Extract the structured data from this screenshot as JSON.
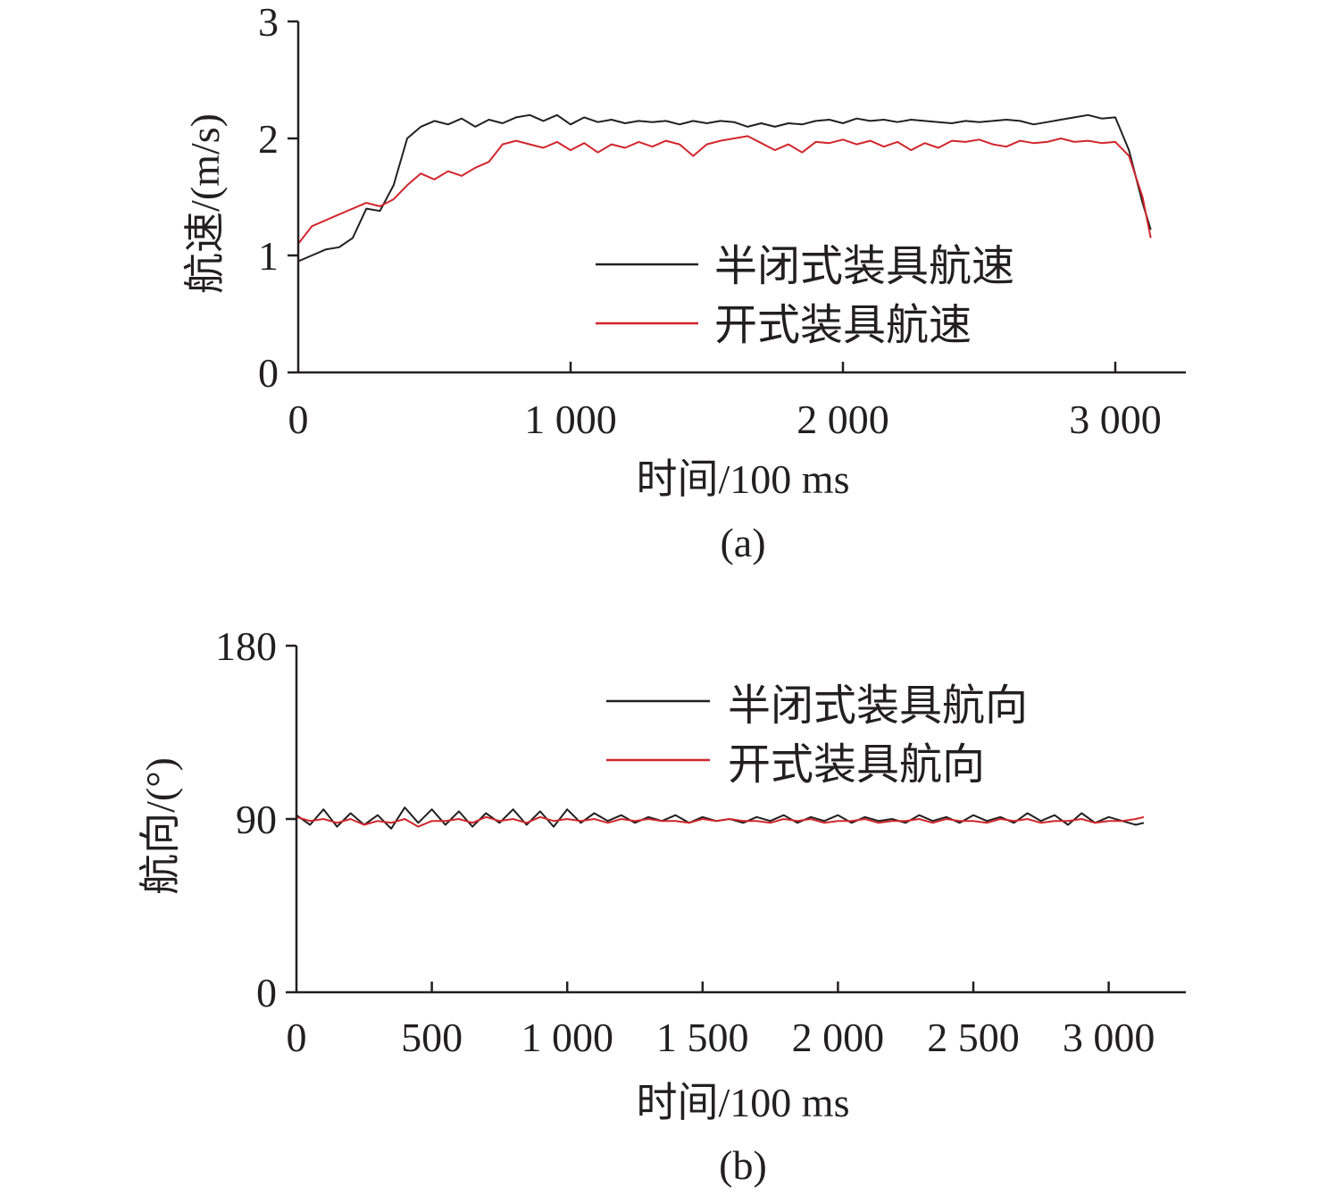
{
  "chart_data": [
    {
      "type": "line",
      "caption": "(a)",
      "xlabel": "时间/100 ms",
      "ylabel": "航速/(m/s)",
      "xlim": [
        0,
        3250
      ],
      "ylim": [
        0,
        3
      ],
      "xticks": [
        0,
        1000,
        2000,
        3000
      ],
      "xtick_labels": [
        "0",
        "1 000",
        "2 000",
        "3 000"
      ],
      "yticks": [
        0,
        1,
        2,
        3
      ],
      "ytick_labels": [
        "0",
        "1",
        "2",
        "3"
      ],
      "legend_position": "center-right",
      "x": [
        0,
        50,
        100,
        150,
        200,
        250,
        300,
        350,
        400,
        450,
        500,
        550,
        600,
        650,
        700,
        750,
        800,
        850,
        900,
        950,
        1000,
        1050,
        1100,
        1150,
        1200,
        1250,
        1300,
        1350,
        1400,
        1450,
        1500,
        1550,
        1600,
        1650,
        1700,
        1750,
        1800,
        1850,
        1900,
        1950,
        2000,
        2050,
        2100,
        2150,
        2200,
        2250,
        2300,
        2350,
        2400,
        2450,
        2500,
        2550,
        2600,
        2650,
        2700,
        2750,
        2800,
        2850,
        2900,
        2950,
        3000,
        3050,
        3100,
        3130
      ],
      "series": [
        {
          "name": "半闭式装具航速",
          "color": "#231f20",
          "values": [
            0.95,
            1.0,
            1.05,
            1.07,
            1.15,
            1.4,
            1.38,
            1.6,
            2.0,
            2.1,
            2.15,
            2.12,
            2.17,
            2.1,
            2.16,
            2.13,
            2.18,
            2.2,
            2.15,
            2.2,
            2.12,
            2.18,
            2.14,
            2.16,
            2.13,
            2.15,
            2.14,
            2.15,
            2.12,
            2.15,
            2.13,
            2.15,
            2.14,
            2.1,
            2.13,
            2.1,
            2.13,
            2.12,
            2.15,
            2.16,
            2.13,
            2.17,
            2.15,
            2.16,
            2.14,
            2.16,
            2.15,
            2.14,
            2.13,
            2.15,
            2.14,
            2.15,
            2.16,
            2.15,
            2.12,
            2.14,
            2.16,
            2.18,
            2.2,
            2.17,
            2.18,
            1.9,
            1.45,
            1.22
          ]
        },
        {
          "name": "开式装具航速",
          "color": "#d0262c",
          "values": [
            1.1,
            1.25,
            1.3,
            1.35,
            1.4,
            1.45,
            1.42,
            1.48,
            1.6,
            1.7,
            1.65,
            1.72,
            1.68,
            1.75,
            1.8,
            1.95,
            1.98,
            1.95,
            1.92,
            1.97,
            1.9,
            1.96,
            1.88,
            1.95,
            1.92,
            1.97,
            1.93,
            1.98,
            1.95,
            1.85,
            1.95,
            1.98,
            2.0,
            2.02,
            1.96,
            1.9,
            1.95,
            1.88,
            1.97,
            1.96,
            1.99,
            1.95,
            1.98,
            1.93,
            1.97,
            1.9,
            1.96,
            1.92,
            1.98,
            1.97,
            1.99,
            1.95,
            1.93,
            1.98,
            1.96,
            1.97,
            2.0,
            1.97,
            1.98,
            1.96,
            1.97,
            1.85,
            1.5,
            1.15
          ]
        }
      ]
    },
    {
      "type": "line",
      "caption": "(b)",
      "xlabel": "时间/100 ms",
      "ylabel": "航向/(°)",
      "xlim": [
        0,
        3285
      ],
      "ylim": [
        0,
        180
      ],
      "xticks": [
        0,
        500,
        1000,
        1500,
        2000,
        2500,
        3000
      ],
      "xtick_labels": [
        "0",
        "500",
        "1 000",
        "1 500",
        "2 000",
        "2 500",
        "3 000"
      ],
      "yticks": [
        0,
        90,
        180
      ],
      "ytick_labels": [
        "0",
        "90",
        "180"
      ],
      "legend_position": "top-right",
      "x": [
        0,
        50,
        100,
        150,
        200,
        250,
        300,
        350,
        400,
        450,
        500,
        550,
        600,
        650,
        700,
        750,
        800,
        850,
        900,
        950,
        1000,
        1050,
        1100,
        1150,
        1200,
        1250,
        1300,
        1350,
        1400,
        1450,
        1500,
        1550,
        1600,
        1650,
        1700,
        1750,
        1800,
        1850,
        1900,
        1950,
        2000,
        2050,
        2100,
        2150,
        2200,
        2250,
        2300,
        2350,
        2400,
        2450,
        2500,
        2550,
        2600,
        2650,
        2700,
        2750,
        2800,
        2850,
        2900,
        2950,
        3000,
        3050,
        3100,
        3130
      ],
      "series": [
        {
          "name": "半闭式装具航向",
          "color": "#231f20",
          "values": [
            92,
            87,
            95,
            86,
            93,
            87,
            92,
            85,
            96,
            88,
            95,
            87,
            94,
            86,
            93,
            88,
            95,
            87,
            94,
            86,
            95,
            88,
            93,
            89,
            92,
            88,
            91,
            89,
            92,
            88,
            91,
            89,
            90,
            88,
            91,
            89,
            92,
            88,
            91,
            89,
            92,
            88,
            91,
            89,
            90,
            88,
            92,
            89,
            91,
            88,
            92,
            89,
            91,
            88,
            93,
            89,
            92,
            87,
            93,
            88,
            91,
            89,
            87,
            88
          ]
        },
        {
          "name": "开式装具航向",
          "color": "#d0262c",
          "values": [
            91,
            89,
            90,
            88,
            90,
            87,
            89,
            88,
            90,
            86,
            89,
            89,
            90,
            88,
            91,
            89,
            90,
            88,
            91,
            89,
            90,
            89,
            90,
            88,
            90,
            89,
            90,
            89,
            89,
            88,
            90,
            89,
            90,
            89,
            89,
            88,
            90,
            89,
            90,
            88,
            89,
            89,
            90,
            88,
            89,
            89,
            90,
            88,
            90,
            89,
            89,
            88,
            90,
            89,
            90,
            88,
            89,
            89,
            90,
            88,
            89,
            89,
            90,
            91
          ]
        }
      ]
    }
  ]
}
